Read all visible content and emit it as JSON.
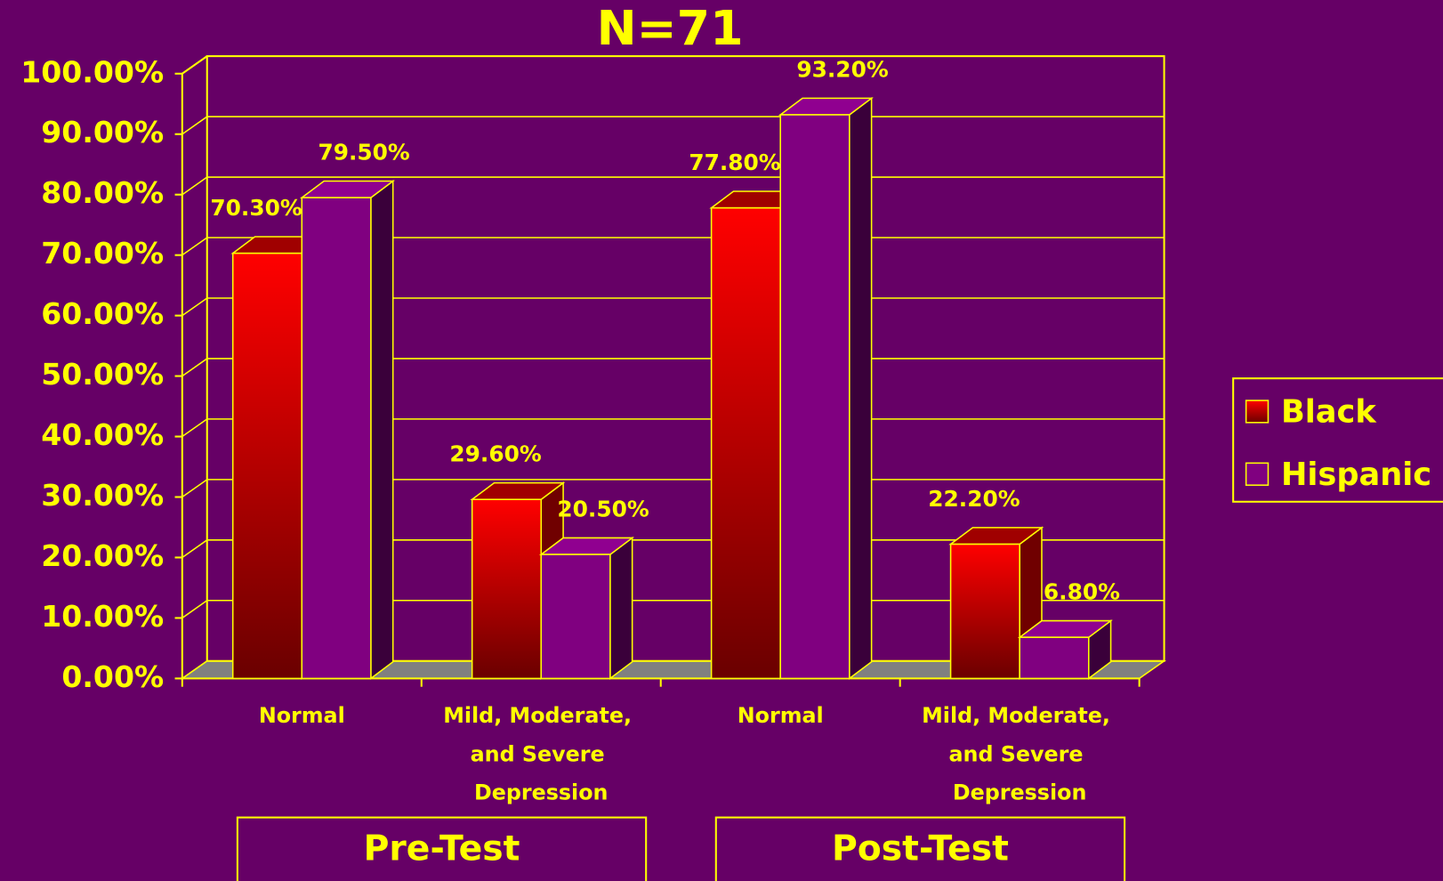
{
  "chart_data": {
    "type": "bar3d",
    "title": "N=71",
    "categories": [
      "Normal",
      "Mild, Moderate, and Severe Depression",
      "Normal",
      "Mild, Moderate, and Severe Depression"
    ],
    "group_labels": [
      "Pre-Test",
      "Post-Test"
    ],
    "series": [
      {
        "name": "Black",
        "color": "#ff0000",
        "values": [
          70.3,
          29.6,
          77.8,
          22.2
        ],
        "value_labels": [
          "70.30%",
          "29.60%",
          "77.80%",
          "22.20%"
        ]
      },
      {
        "name": "Hispanic",
        "color": "#800080",
        "values": [
          79.5,
          20.5,
          93.2,
          6.8
        ],
        "value_labels": [
          "79.50%",
          "20.50%",
          "93.20%",
          "6.80%"
        ]
      }
    ],
    "ylim": [
      0,
      100
    ],
    "yticks": [
      {
        "value": 0,
        "label": "0.00%"
      },
      {
        "value": 10,
        "label": "10.00%"
      },
      {
        "value": 20,
        "label": "20.00%"
      },
      {
        "value": 30,
        "label": "30.00%"
      },
      {
        "value": 40,
        "label": "40.00%"
      },
      {
        "value": 50,
        "label": "50.00%"
      },
      {
        "value": 60,
        "label": "60.00%"
      },
      {
        "value": 70,
        "label": "70.00%"
      },
      {
        "value": 80,
        "label": "80.00%"
      },
      {
        "value": 90,
        "label": "90.00%"
      },
      {
        "value": 100,
        "label": "100.00%"
      }
    ],
    "grid": true,
    "legend": "right"
  }
}
